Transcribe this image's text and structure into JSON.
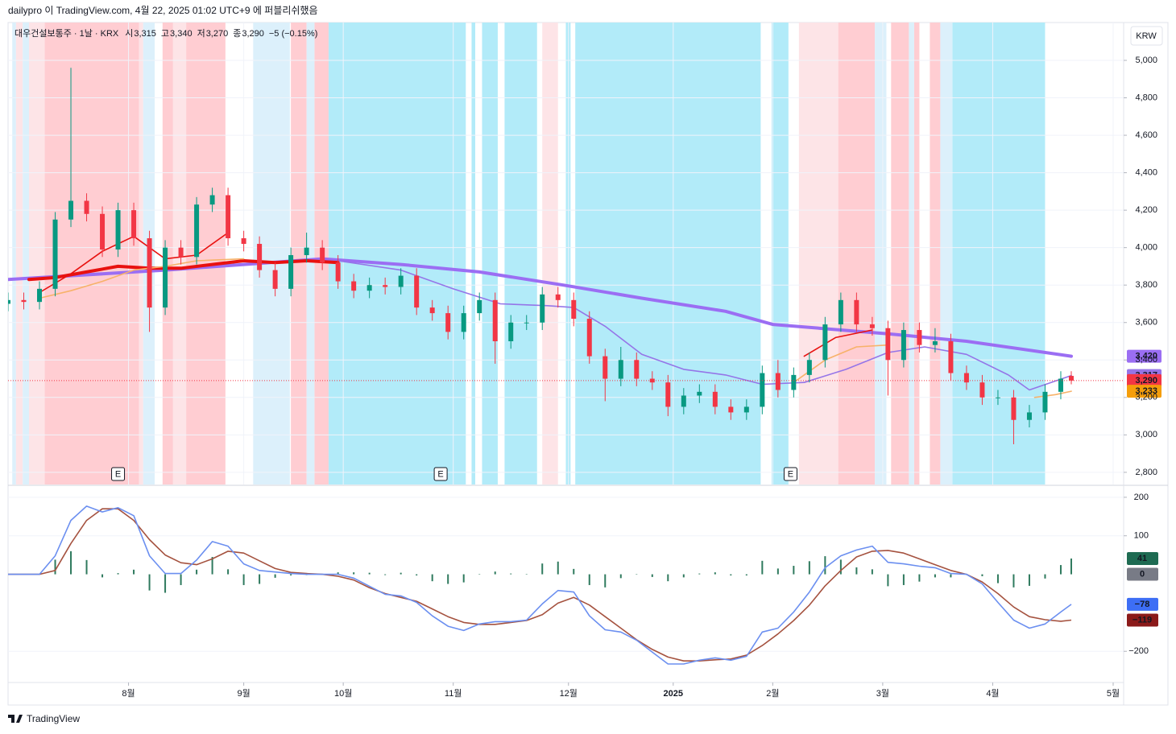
{
  "header": {
    "publisher": "dailypro 이 TradingView.com, 4월 22, 2025 01:02 UTC+9 에 퍼블리쉬했음"
  },
  "footer": {
    "brand": "TradingView"
  },
  "chart_data": [
    {
      "type": "candlestick",
      "symbol": "대우건설보통주 · 1날 · KRX",
      "ohlc": [
        {
          "key": "시",
          "value": "3,315"
        },
        {
          "key": "고",
          "value": "3,340"
        },
        {
          "key": "저",
          "value": "3,270"
        },
        {
          "key": "종",
          "value": "3,290"
        }
      ],
      "change": "−5 (−0.15%)",
      "currency": "KRW",
      "up_color": "#089981",
      "down_color": "#f23645",
      "x": [
        0,
        3,
        6,
        9,
        12,
        15,
        18,
        21,
        24,
        27,
        30,
        33,
        36,
        39,
        42,
        45,
        48,
        51,
        54,
        57,
        60,
        63,
        66,
        69,
        72,
        75,
        78,
        81,
        84,
        87,
        90,
        93,
        96,
        99,
        102,
        105,
        108,
        111,
        114,
        117,
        120,
        123,
        126,
        129,
        132,
        135,
        138,
        141,
        144,
        147,
        150,
        153,
        156,
        159,
        162,
        165,
        168,
        171,
        174,
        177,
        180,
        183,
        186,
        189,
        192,
        195,
        198,
        201,
        203
      ],
      "open": [
        3700,
        3720,
        3710,
        3780,
        4150,
        4250,
        4180,
        3990,
        4200,
        4050,
        3680,
        4000,
        3950,
        4230,
        4280,
        4050,
        4020,
        3880,
        3780,
        3960,
        4000,
        3920,
        3820,
        3770,
        3800,
        3790,
        3850,
        3680,
        3650,
        3550,
        3650,
        3720,
        3500,
        3600,
        3600,
        3750,
        3720,
        3620,
        3420,
        3300,
        3400,
        3300,
        3280,
        3150,
        3210,
        3230,
        3150,
        3120,
        3150,
        3330,
        3240,
        3320,
        3400,
        3590,
        3720,
        3590,
        3570,
        3400,
        3560,
        3480,
        3500,
        3330,
        3280,
        3200,
        3200,
        3080,
        3120,
        3230,
        3315
      ],
      "high": [
        3760,
        3760,
        3820,
        4190,
        4960,
        4290,
        4220,
        4240,
        4240,
        4090,
        4040,
        4040,
        4270,
        4320,
        4320,
        4090,
        4060,
        3920,
        4000,
        4080,
        4040,
        3960,
        3860,
        3840,
        3840,
        3890,
        3890,
        3720,
        3690,
        3690,
        3760,
        3760,
        3640,
        3640,
        3790,
        3790,
        3760,
        3660,
        3460,
        3470,
        3440,
        3340,
        3320,
        3250,
        3270,
        3270,
        3190,
        3190,
        3370,
        3400,
        3360,
        3440,
        3630,
        3760,
        3760,
        3630,
        3610,
        3600,
        3600,
        3570,
        3540,
        3370,
        3320,
        3240,
        3240,
        3160,
        3270,
        3340,
        3340
      ],
      "low": [
        3660,
        3670,
        3670,
        3740,
        4110,
        4140,
        3950,
        3950,
        4010,
        3550,
        3640,
        3910,
        3910,
        4190,
        4010,
        3980,
        3840,
        3740,
        3740,
        3920,
        3880,
        3780,
        3730,
        3730,
        3750,
        3750,
        3640,
        3610,
        3510,
        3510,
        3610,
        3380,
        3460,
        3560,
        3560,
        3680,
        3580,
        3380,
        3180,
        3260,
        3260,
        3240,
        3100,
        3110,
        3170,
        3110,
        3080,
        3080,
        3110,
        3200,
        3200,
        3280,
        3360,
        3550,
        3550,
        3530,
        3210,
        3360,
        3440,
        3440,
        3290,
        3240,
        3160,
        3160,
        2950,
        3040,
        3080,
        3190,
        3270
      ],
      "close": [
        3720,
        3710,
        3780,
        4150,
        4250,
        4180,
        3990,
        4200,
        4050,
        3680,
        4000,
        3950,
        4230,
        4280,
        4050,
        4020,
        3880,
        3780,
        3960,
        4000,
        3920,
        3820,
        3770,
        3800,
        3790,
        3850,
        3680,
        3650,
        3550,
        3650,
        3720,
        3500,
        3600,
        3600,
        3750,
        3720,
        3620,
        3420,
        3300,
        3400,
        3300,
        3280,
        3150,
        3210,
        3230,
        3150,
        3120,
        3150,
        3330,
        3240,
        3320,
        3400,
        3590,
        3720,
        3590,
        3570,
        3400,
        3560,
        3480,
        3500,
        3330,
        3280,
        3200,
        3200,
        3080,
        3120,
        3230,
        3300,
        3290
      ],
      "xlim": [
        0,
        213
      ],
      "xticks": [
        {
          "value": 23,
          "label": "8월"
        },
        {
          "value": 45,
          "label": "9월"
        },
        {
          "value": 64,
          "label": "10월"
        },
        {
          "value": 85,
          "label": "11월"
        },
        {
          "value": 107,
          "label": "12월"
        },
        {
          "value": 127,
          "label": "2025"
        },
        {
          "value": 146,
          "label": "2월"
        },
        {
          "value": 167,
          "label": "3월"
        },
        {
          "value": 188,
          "label": "4월"
        },
        {
          "value": 211,
          "label": "5월"
        }
      ],
      "ylim": [
        2735,
        5202
      ],
      "yticks": [
        {
          "value": 2800,
          "label": "2,800"
        },
        {
          "value": 3000,
          "label": "3,000"
        },
        {
          "value": 3200,
          "label": "3,200"
        },
        {
          "value": 3400,
          "label": "3,400"
        },
        {
          "value": 3600,
          "label": "3,600"
        },
        {
          "value": 3800,
          "label": "3,800"
        },
        {
          "value": 4000,
          "label": "4,000"
        },
        {
          "value": 4200,
          "label": "4,200"
        },
        {
          "value": 4400,
          "label": "4,400"
        },
        {
          "value": 4600,
          "label": "4,600"
        },
        {
          "value": 4800,
          "label": "4,800"
        },
        {
          "value": 5000,
          "label": "5,000"
        }
      ],
      "grid": true,
      "background_bands": [
        {
          "color": "#ffcdd2",
          "ranges": [
            [
              7,
              25
            ],
            [
              29.5,
              31.5
            ],
            [
              34,
              41.5
            ],
            [
              54,
              57
            ],
            [
              58.5,
              61.2
            ],
            [
              158.5,
              165.5
            ],
            [
              168.6,
              172
            ],
            [
              173,
              174
            ],
            [
              176,
              178
            ]
          ]
        },
        {
          "color": "#fde4e7",
          "ranges": [
            [
              1.5,
              2.8
            ],
            [
              4,
              7
            ],
            [
              25,
              25.8
            ],
            [
              31.5,
              34
            ],
            [
              102,
              105
            ],
            [
              151,
              158.5
            ]
          ]
        },
        {
          "color": "#b2ebf9",
          "ranges": [
            [
              61.2,
              87.4
            ],
            [
              88.5,
              89.2
            ],
            [
              90.5,
              93.5
            ],
            [
              94.8,
              101
            ],
            [
              106.5,
              107.4
            ],
            [
              108.3,
              143.7
            ],
            [
              145.8,
              149
            ],
            [
              180.3,
              198
            ]
          ]
        },
        {
          "color": "#dcf0fb",
          "ranges": [
            [
              0.8,
              1.5
            ],
            [
              2.8,
              4
            ],
            [
              25.8,
              28
            ],
            [
              46.8,
              53.8
            ],
            [
              57,
              58.5
            ],
            [
              165.5,
              167.7
            ],
            [
              172,
              173
            ],
            [
              178,
              180.3
            ]
          ]
        }
      ],
      "lines": [
        {
          "color": "#9b6ef3",
          "x": [
            0,
            30,
            45,
            60,
            75,
            90,
            106,
            121,
            137,
            146,
            168,
            183,
            203
          ],
          "values": [
            3830,
            3880,
            3910,
            3940,
            3910,
            3870,
            3800,
            3730,
            3660,
            3590,
            3540,
            3500,
            3420
          ]
        },
        {
          "color": "#9575e8",
          "x": [
            54,
            63,
            75,
            85,
            94,
            103,
            108,
            114,
            121,
            129,
            137,
            144,
            152,
            160,
            168,
            175,
            183,
            191,
            195,
            203
          ],
          "values": [
            3930,
            3930,
            3880,
            3780,
            3700,
            3690,
            3680,
            3580,
            3430,
            3350,
            3320,
            3270,
            3280,
            3350,
            3440,
            3470,
            3430,
            3320,
            3240,
            3317
          ]
        },
        {
          "color": "#e8110f",
          "x": [
            4,
            9,
            15,
            21,
            27,
            33,
            39,
            45,
            51,
            57,
            63
          ],
          "values": [
            3830,
            3840,
            3870,
            3900,
            3890,
            3890,
            3910,
            3930,
            3920,
            3930,
            3920
          ]
        },
        {
          "color": "#e8110f",
          "x": [
            6,
            12,
            18,
            24,
            30,
            36,
            42,
            48,
            152,
            158,
            165
          ],
          "values": [
            3760,
            3860,
            3980,
            4060,
            3940,
            3960,
            4080,
            null,
            3420,
            3520,
            3560
          ]
        },
        {
          "color": "#f7b26a",
          "x": [
            6,
            12,
            18,
            24,
            30,
            36,
            45,
            146,
            150,
            156,
            162,
            168,
            190,
            196,
            200,
            203
          ],
          "values": [
            3730,
            3770,
            3820,
            3880,
            3900,
            3930,
            3940,
            null,
            3280,
            3400,
            3470,
            3480,
            null,
            3200,
            3215,
            3233
          ]
        }
      ],
      "events": [
        {
          "x": 21,
          "label": "E"
        },
        {
          "x": 82.6,
          "label": "E"
        },
        {
          "x": 149.4,
          "label": "E"
        }
      ],
      "price_labels": [
        {
          "value": 3420,
          "label": "3,420",
          "color": "#9b6ef3"
        },
        {
          "value": 3317,
          "label": "3,317",
          "color": "#9575e8"
        },
        {
          "value": 3290,
          "label": "3,290",
          "color": "#f23645"
        },
        {
          "value": 3233,
          "label": "3,233",
          "color": "#f59e0b"
        }
      ]
    },
    {
      "type": "macd",
      "x": [
        0,
        3,
        6,
        9,
        12,
        15,
        18,
        21,
        24,
        27,
        30,
        33,
        36,
        39,
        42,
        45,
        48,
        51,
        54,
        57,
        60,
        63,
        66,
        69,
        72,
        75,
        78,
        81,
        84,
        87,
        90,
        93,
        96,
        99,
        102,
        105,
        108,
        111,
        114,
        117,
        120,
        123,
        126,
        129,
        132,
        135,
        138,
        141,
        144,
        147,
        150,
        153,
        156,
        159,
        162,
        165,
        168,
        171,
        174,
        177,
        180,
        183,
        186,
        189,
        192,
        195,
        198,
        201,
        203
      ],
      "macd": [
        0,
        0,
        0,
        48,
        140,
        177,
        162,
        173,
        152,
        48,
        2,
        2,
        37,
        85,
        73,
        27,
        10,
        6,
        2,
        0,
        0,
        0,
        -10,
        -31,
        -52,
        -56,
        -73,
        -108,
        -135,
        -146,
        -129,
        -123,
        -123,
        -119,
        -77,
        -42,
        -46,
        -108,
        -144,
        -150,
        -171,
        -202,
        -233,
        -233,
        -223,
        -217,
        -223,
        -213,
        -150,
        -140,
        -98,
        -46,
        17,
        48,
        63,
        73,
        31,
        27,
        21,
        17,
        2,
        0,
        -25,
        -73,
        -119,
        -140,
        -129,
        -98,
        -78
      ],
      "signal": [
        0,
        0,
        0,
        10,
        80,
        140,
        170,
        170,
        140,
        90,
        50,
        30,
        25,
        40,
        60,
        55,
        35,
        15,
        5,
        2,
        0,
        -5,
        -15,
        -35,
        -50,
        -60,
        -70,
        -90,
        -110,
        -125,
        -130,
        -130,
        -125,
        -120,
        -105,
        -75,
        -60,
        -80,
        -110,
        -140,
        -170,
        -195,
        -215,
        -225,
        -225,
        -222,
        -220,
        -210,
        -185,
        -155,
        -120,
        -80,
        -30,
        10,
        45,
        60,
        62,
        55,
        40,
        25,
        10,
        0,
        -20,
        -50,
        -85,
        -110,
        -118,
        -122,
        -119
      ],
      "histogram": [
        0,
        0,
        0,
        38,
        60,
        37,
        -8,
        3,
        12,
        -42,
        -48,
        -28,
        12,
        45,
        13,
        -28,
        -25,
        -9,
        -3,
        -2,
        0,
        5,
        5,
        4,
        -2,
        4,
        -3,
        -18,
        -25,
        -21,
        1,
        7,
        2,
        1,
        28,
        33,
        14,
        -28,
        -34,
        -10,
        -1,
        -7,
        -18,
        -8,
        2,
        5,
        -3,
        -3,
        35,
        15,
        22,
        34,
        47,
        38,
        18,
        13,
        -31,
        -28,
        -19,
        -8,
        -8,
        0,
        -5,
        -23,
        -34,
        -30,
        -11,
        24,
        41
      ],
      "macd_color": "#6b8ff0",
      "signal_color": "#a5523f",
      "histogram_color": "#2f7a5e",
      "xlim": [
        0,
        213
      ],
      "ylim": [
        -281,
        229
      ],
      "yticks": [
        200,
        100,
        {
          "value": -200,
          "label": "−200"
        }
      ],
      "grid": true,
      "price_labels": [
        {
          "value": 41,
          "label": "41",
          "color": "#1e6b52"
        },
        {
          "value": 0,
          "label": "0",
          "color": "#787b86"
        },
        {
          "value": -78,
          "label": "−78",
          "color": "#3d6ef5"
        },
        {
          "value": -119,
          "label": "−119",
          "color": "#8b1a1a"
        }
      ]
    }
  ]
}
